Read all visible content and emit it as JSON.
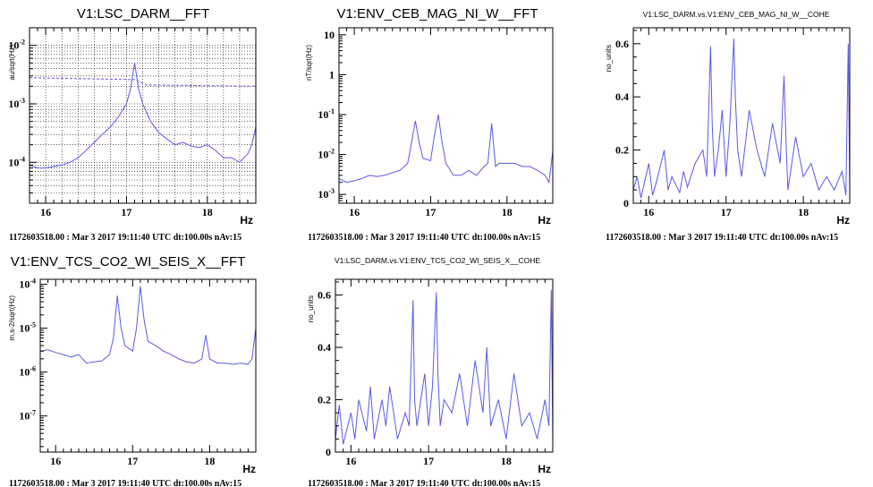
{
  "footer_text": "1172603518.00 : Mar  3 2017 19:11:40 UTC dt:100.00s nAv:15",
  "x_unit": "Hz",
  "colors": {
    "trace": "#5a5ae6",
    "frame": "#000000",
    "grid": "#000000"
  },
  "chart_data": [
    {
      "type": "line",
      "title": "V1:LSC_DARM__FFT",
      "ylabel": "au/sqrt(Hz)",
      "xlabel": "Hz",
      "xlim": [
        15.8,
        18.6
      ],
      "ylim": [
        2e-05,
        0.02
      ],
      "yscale": "log",
      "grid": true,
      "x_ticks": [
        16,
        17,
        18
      ],
      "y_ticks": [
        {
          "value": 0.0001,
          "base": "10",
          "exp": "-4"
        },
        {
          "value": 0.001,
          "base": "10",
          "exp": "-3"
        },
        {
          "value": 0.01,
          "base": "10",
          "exp": "-2"
        }
      ],
      "series": [
        {
          "style": "solid",
          "x": [
            15.8,
            15.9,
            16.0,
            16.1,
            16.2,
            16.3,
            16.4,
            16.5,
            16.6,
            16.7,
            16.8,
            16.9,
            17.0,
            17.05,
            17.1,
            17.15,
            17.2,
            17.3,
            17.4,
            17.5,
            17.6,
            17.7,
            17.8,
            17.9,
            18.0,
            18.1,
            18.2,
            18.3,
            18.4,
            18.5,
            18.55,
            18.6
          ],
          "y": [
            9e-05,
            8e-05,
            8e-05,
            8.5e-05,
            9e-05,
            0.0001,
            0.00012,
            0.00016,
            0.00022,
            0.0003,
            0.0004,
            0.0006,
            0.001,
            0.0018,
            0.005,
            0.0018,
            0.001,
            0.0005,
            0.00032,
            0.00025,
            0.0002,
            0.00022,
            0.00019,
            0.00018,
            0.0002,
            0.00016,
            0.00012,
            0.00012,
            0.0001,
            0.00014,
            0.0002,
            0.0004
          ]
        },
        {
          "style": "dashed",
          "x": [
            15.8,
            17.1,
            17.25,
            18.6
          ],
          "y": [
            0.0028,
            0.0026,
            0.0021,
            0.002
          ]
        }
      ]
    },
    {
      "type": "line",
      "title": "V1:ENV_CEB_MAG_NI_W__FFT",
      "ylabel": "nT/sqrt(Hz)",
      "xlabel": "Hz",
      "xlim": [
        15.8,
        18.6
      ],
      "ylim": [
        0.0006,
        15
      ],
      "yscale": "log",
      "grid": false,
      "x_ticks": [
        16,
        17,
        18
      ],
      "y_ticks": [
        {
          "value": 0.001,
          "base": "10",
          "exp": "-3"
        },
        {
          "value": 0.01,
          "base": "10",
          "exp": "-2"
        },
        {
          "value": 0.1,
          "base": "10",
          "exp": "-1"
        },
        {
          "value": 1,
          "base": "1",
          "exp": ""
        },
        {
          "value": 10,
          "base": "10",
          "exp": ""
        }
      ],
      "series": [
        {
          "style": "solid",
          "x": [
            15.8,
            15.9,
            16.0,
            16.1,
            16.2,
            16.3,
            16.4,
            16.5,
            16.6,
            16.7,
            16.75,
            16.8,
            16.85,
            16.9,
            17.0,
            17.05,
            17.1,
            17.15,
            17.2,
            17.3,
            17.4,
            17.5,
            17.6,
            17.7,
            17.75,
            17.8,
            17.85,
            17.9,
            18.0,
            18.1,
            18.2,
            18.3,
            18.4,
            18.5,
            18.55,
            18.6
          ],
          "y": [
            0.0025,
            0.002,
            0.0022,
            0.0025,
            0.003,
            0.0028,
            0.003,
            0.0035,
            0.004,
            0.006,
            0.02,
            0.07,
            0.02,
            0.008,
            0.007,
            0.03,
            0.1,
            0.02,
            0.006,
            0.003,
            0.003,
            0.004,
            0.003,
            0.005,
            0.006,
            0.06,
            0.005,
            0.006,
            0.006,
            0.006,
            0.005,
            0.005,
            0.004,
            0.003,
            0.002,
            0.012
          ]
        }
      ]
    },
    {
      "type": "line",
      "title": "V1:LSC_DARM.vs.V1:ENV_CEB_MAG_NI_W__COHE",
      "ylabel": "no_units",
      "xlabel": "Hz",
      "xlim": [
        15.8,
        18.6
      ],
      "ylim": [
        0,
        0.66
      ],
      "yscale": "linear",
      "grid": false,
      "x_ticks": [
        16,
        17,
        18
      ],
      "y_ticks": [
        {
          "value": 0,
          "label": "0"
        },
        {
          "value": 0.2,
          "label": "0.2"
        },
        {
          "value": 0.4,
          "label": "0.4"
        },
        {
          "value": 0.6,
          "label": "0.6"
        }
      ],
      "series": [
        {
          "style": "solid",
          "x": [
            15.8,
            15.85,
            15.9,
            16.0,
            16.05,
            16.1,
            16.2,
            16.25,
            16.3,
            16.4,
            16.45,
            16.5,
            16.6,
            16.7,
            16.75,
            16.8,
            16.82,
            16.85,
            16.9,
            16.95,
            17.0,
            17.05,
            17.1,
            17.12,
            17.15,
            17.2,
            17.3,
            17.4,
            17.5,
            17.6,
            17.7,
            17.75,
            17.78,
            17.8,
            17.9,
            18.0,
            18.1,
            18.2,
            18.3,
            18.4,
            18.5,
            18.55,
            18.58,
            18.6
          ],
          "y": [
            0.05,
            0.1,
            0.02,
            0.15,
            0.03,
            0.08,
            0.2,
            0.05,
            0.1,
            0.04,
            0.12,
            0.06,
            0.15,
            0.2,
            0.1,
            0.59,
            0.3,
            0.1,
            0.2,
            0.35,
            0.1,
            0.3,
            0.62,
            0.4,
            0.2,
            0.1,
            0.35,
            0.2,
            0.1,
            0.3,
            0.15,
            0.48,
            0.2,
            0.05,
            0.25,
            0.1,
            0.15,
            0.05,
            0.1,
            0.05,
            0.12,
            0.03,
            0.6,
            0.05
          ]
        }
      ]
    },
    {
      "type": "line",
      "title": "V1:ENV_TCS_CO2_WI_SEIS_X__FFT",
      "ylabel": "m.s-2/sqrt(Hz)",
      "xlabel": "Hz",
      "xlim": [
        15.8,
        18.6
      ],
      "ylim": [
        1.5e-08,
        0.00013
      ],
      "yscale": "log",
      "grid": false,
      "x_ticks": [
        16,
        17,
        18
      ],
      "y_ticks": [
        {
          "value": 1e-07,
          "base": "10",
          "exp": "-7"
        },
        {
          "value": 1e-06,
          "base": "10",
          "exp": "-6"
        },
        {
          "value": 1e-05,
          "base": "10",
          "exp": "-5"
        },
        {
          "value": 0.0001,
          "base": "10",
          "exp": "-4"
        }
      ],
      "series": [
        {
          "style": "solid",
          "x": [
            15.8,
            15.9,
            16.0,
            16.1,
            16.2,
            16.3,
            16.4,
            16.5,
            16.6,
            16.7,
            16.75,
            16.8,
            16.85,
            16.9,
            17.0,
            17.05,
            17.1,
            17.15,
            17.2,
            17.3,
            17.4,
            17.5,
            17.6,
            17.7,
            17.8,
            17.9,
            17.95,
            18.0,
            18.1,
            18.2,
            18.3,
            18.4,
            18.5,
            18.55,
            18.6
          ],
          "y": [
            3e-06,
            3.2e-06,
            2.8e-06,
            2.5e-06,
            2.2e-06,
            2.5e-06,
            1.6e-06,
            1.7e-06,
            1.8e-06,
            2.5e-06,
            6e-06,
            5.5e-05,
            1e-05,
            4e-06,
            3e-06,
            1e-05,
            9e-05,
            1.5e-05,
            5e-06,
            4e-06,
            3e-06,
            2.5e-06,
            2e-06,
            1.7e-06,
            1.6e-06,
            2e-06,
            7e-06,
            2e-06,
            1.6e-06,
            1.6e-06,
            1.5e-06,
            1.6e-06,
            1.5e-06,
            2e-06,
            1e-05
          ]
        }
      ]
    },
    {
      "type": "line",
      "title": "V1:LSC_DARM.vs.V1:ENV_TCS_CO2_WI_SEIS_X__COHE",
      "ylabel": "no_units",
      "xlabel": "Hz",
      "xlim": [
        15.8,
        18.6
      ],
      "ylim": [
        0,
        0.66
      ],
      "yscale": "linear",
      "grid": false,
      "x_ticks": [
        16,
        17,
        18
      ],
      "y_ticks": [
        {
          "value": 0,
          "label": "0"
        },
        {
          "value": 0.2,
          "label": "0.2"
        },
        {
          "value": 0.4,
          "label": "0.4"
        },
        {
          "value": 0.6,
          "label": "0.6"
        }
      ],
      "series": [
        {
          "style": "solid",
          "x": [
            15.8,
            15.85,
            15.9,
            16.0,
            16.05,
            16.1,
            16.2,
            16.25,
            16.3,
            16.4,
            16.45,
            16.5,
            16.6,
            16.7,
            16.75,
            16.8,
            16.82,
            16.85,
            16.9,
            16.95,
            17.0,
            17.05,
            17.1,
            17.12,
            17.15,
            17.2,
            17.3,
            17.4,
            17.5,
            17.6,
            17.7,
            17.75,
            17.8,
            17.9,
            18.0,
            18.1,
            18.2,
            18.3,
            18.4,
            18.5,
            18.55,
            18.58,
            18.6
          ],
          "y": [
            0.05,
            0.18,
            0.03,
            0.15,
            0.05,
            0.2,
            0.08,
            0.25,
            0.05,
            0.2,
            0.1,
            0.25,
            0.05,
            0.15,
            0.1,
            0.58,
            0.2,
            0.1,
            0.2,
            0.3,
            0.1,
            0.25,
            0.61,
            0.3,
            0.1,
            0.2,
            0.15,
            0.3,
            0.1,
            0.35,
            0.15,
            0.4,
            0.1,
            0.2,
            0.05,
            0.3,
            0.1,
            0.15,
            0.05,
            0.2,
            0.1,
            0.62,
            0.05
          ]
        }
      ]
    }
  ]
}
